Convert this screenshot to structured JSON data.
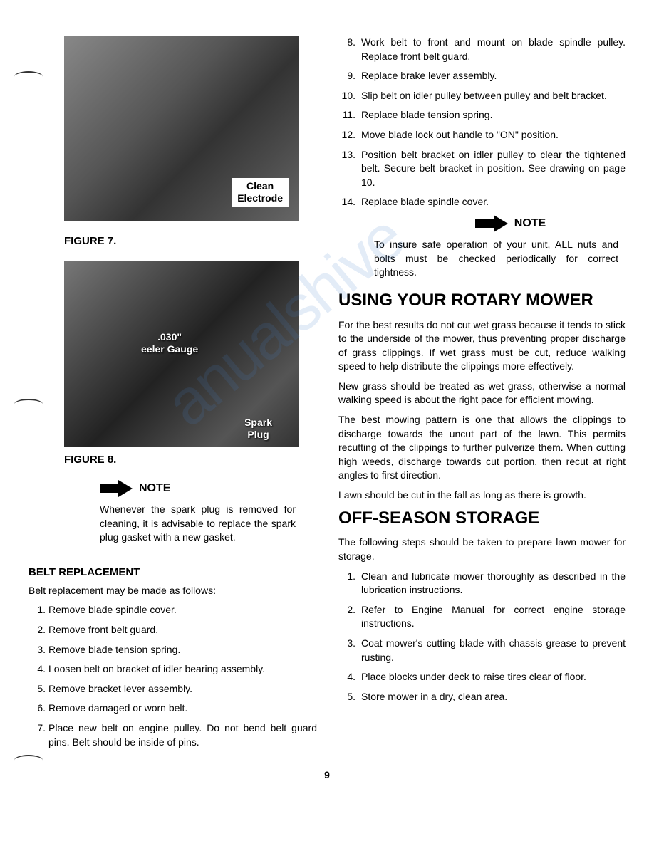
{
  "figures": {
    "fig7": {
      "caption": "FIGURE 7.",
      "label": "Clean\nElectrode"
    },
    "fig8": {
      "caption": "FIGURE 8.",
      "label_gauge": ".030\"\neeler Gauge",
      "label_plug": "Spark\nPlug"
    }
  },
  "note_left": {
    "label": "NOTE",
    "text": "Whenever the spark plug is removed for cleaning, it is advisable to replace the spark plug gasket with a new gasket."
  },
  "belt_replacement": {
    "heading": "BELT REPLACEMENT",
    "intro": "Belt replacement may be made as follows:",
    "steps": [
      "Remove blade spindle cover.",
      "Remove front belt guard.",
      "Remove blade tension spring.",
      "Loosen belt on bracket of idler bearing assembly.",
      "Remove bracket lever assembly.",
      "Remove damaged or worn belt.",
      "Place new belt on engine pulley. Do not bend belt guard pins. Belt should be inside of pins."
    ]
  },
  "right_steps": [
    "Work belt to front and mount on blade spindle pulley. Replace front belt guard.",
    "Replace brake lever assembly.",
    "Slip belt on idler pulley between pulley and belt bracket.",
    "Replace blade tension spring.",
    "Move blade lock out handle to \"ON\" position.",
    "Position belt bracket on idler pulley to clear the tightened belt. Secure belt bracket in position. See drawing on page 10.",
    "Replace blade spindle cover."
  ],
  "right_steps_start": 8,
  "note_right": {
    "label": "NOTE",
    "text": "To insure safe operation of your unit, ALL nuts and bolts must be checked periodically for correct tightness."
  },
  "rotary_mower": {
    "heading": "USING YOUR ROTARY MOWER",
    "paragraphs": [
      "For the best results do not cut wet grass because it tends to stick to the underside of the mower, thus preventing proper discharge of grass clippings. If wet grass must be cut, reduce walking speed to help distribute the clippings more effectively.",
      "New grass should be treated as wet grass, otherwise a normal walking speed is about the right pace for efficient mowing.",
      "The best mowing pattern is one that allows the clippings to discharge towards the uncut part of the lawn. This permits recutting of the clippings to further pulverize them. When cutting high weeds, discharge towards cut portion, then recut at right angles to first direction.",
      "Lawn should be cut in the fall as long as there is growth."
    ]
  },
  "storage": {
    "heading": "OFF-SEASON STORAGE",
    "intro": "The following steps should be taken to prepare lawn mower for storage.",
    "steps": [
      "Clean and lubricate mower thoroughly as described in the lubrication instructions.",
      "Refer to Engine Manual for correct engine storage instructions.",
      "Coat mower's cutting blade with chassis grease to prevent rusting.",
      "Place blocks under deck to raise tires clear of floor.",
      "Store mower in a dry, clean area."
    ]
  },
  "page_number": "9",
  "watermark": "anualshive"
}
